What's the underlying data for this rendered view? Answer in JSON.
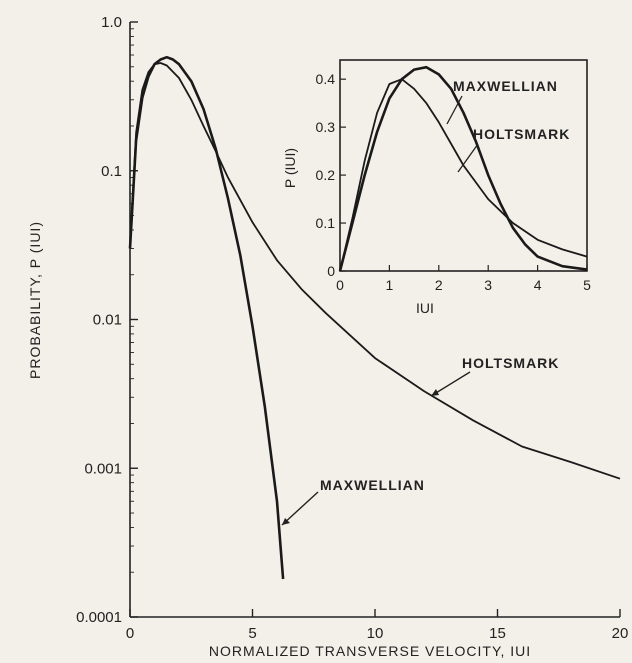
{
  "chart_data": [
    {
      "type": "line",
      "xlabel": "NORMALIZED TRANSVERSE VELOCITY,  IUI",
      "ylabel": "PROBABILITY, P (IUI)",
      "yscale": "log",
      "xlim": [
        0,
        20
      ],
      "ylim": [
        0.0001,
        1.0
      ],
      "x_ticks": [
        "0",
        "5",
        "10",
        "15",
        "20"
      ],
      "y_ticks": [
        "1.0",
        "0.1",
        "0.01",
        "0.001",
        "0.0001"
      ],
      "grid": false,
      "annotations": [
        "HOLTSMARK",
        "MAXWELLIAN"
      ],
      "series": [
        {
          "name": "MAXWELLIAN",
          "x": [
            0,
            0.25,
            0.5,
            0.75,
            1.0,
            1.25,
            1.5,
            1.75,
            2.0,
            2.5,
            3.0,
            3.5,
            4.0,
            4.5,
            5.0,
            5.5,
            6.0,
            6.25
          ],
          "y": [
            0.03,
            0.16,
            0.31,
            0.43,
            0.52,
            0.56,
            0.58,
            0.56,
            0.52,
            0.4,
            0.26,
            0.14,
            0.065,
            0.027,
            0.009,
            0.0026,
            0.0006,
            0.00018
          ]
        },
        {
          "name": "HOLTSMARK",
          "x": [
            0,
            0.25,
            0.5,
            0.75,
            1.0,
            1.25,
            1.5,
            2.0,
            2.5,
            3.0,
            3.5,
            4.0,
            5.0,
            6.0,
            7.0,
            8.0,
            10.0,
            12.0,
            14.0,
            16.0,
            18.0,
            20.0
          ],
          "y": [
            0.03,
            0.18,
            0.35,
            0.46,
            0.52,
            0.53,
            0.51,
            0.42,
            0.3,
            0.2,
            0.135,
            0.09,
            0.045,
            0.025,
            0.016,
            0.011,
            0.0055,
            0.0033,
            0.0021,
            0.0014,
            0.0011,
            0.00085
          ]
        }
      ]
    },
    {
      "type": "line",
      "xlabel": "IUI",
      "ylabel": "P (IUI)",
      "xlim": [
        0,
        5
      ],
      "ylim": [
        0,
        0.44
      ],
      "x_ticks": [
        "0",
        "1",
        "2",
        "3",
        "4",
        "5"
      ],
      "y_ticks": [
        "0",
        "0.1",
        "0.2",
        "0.3",
        "0.4"
      ],
      "grid": false,
      "annotations": [
        "MAXWELLIAN",
        "HOLTSMARK"
      ],
      "series": [
        {
          "name": "MAXWELLIAN",
          "x": [
            0,
            0.25,
            0.5,
            0.75,
            1.0,
            1.25,
            1.5,
            1.75,
            2.0,
            2.25,
            2.5,
            2.75,
            3.0,
            3.25,
            3.5,
            3.75,
            4.0,
            4.5,
            5.0
          ],
          "y": [
            0,
            0.1,
            0.2,
            0.29,
            0.36,
            0.4,
            0.42,
            0.425,
            0.41,
            0.38,
            0.33,
            0.27,
            0.2,
            0.14,
            0.09,
            0.055,
            0.03,
            0.01,
            0.003
          ]
        },
        {
          "name": "HOLTSMARK",
          "x": [
            0,
            0.25,
            0.5,
            0.75,
            1.0,
            1.25,
            1.5,
            1.75,
            2.0,
            2.5,
            3.0,
            3.5,
            4.0,
            4.5,
            5.0
          ],
          "y": [
            0,
            0.11,
            0.23,
            0.33,
            0.39,
            0.4,
            0.38,
            0.35,
            0.31,
            0.22,
            0.15,
            0.1,
            0.065,
            0.045,
            0.03
          ]
        }
      ]
    }
  ]
}
